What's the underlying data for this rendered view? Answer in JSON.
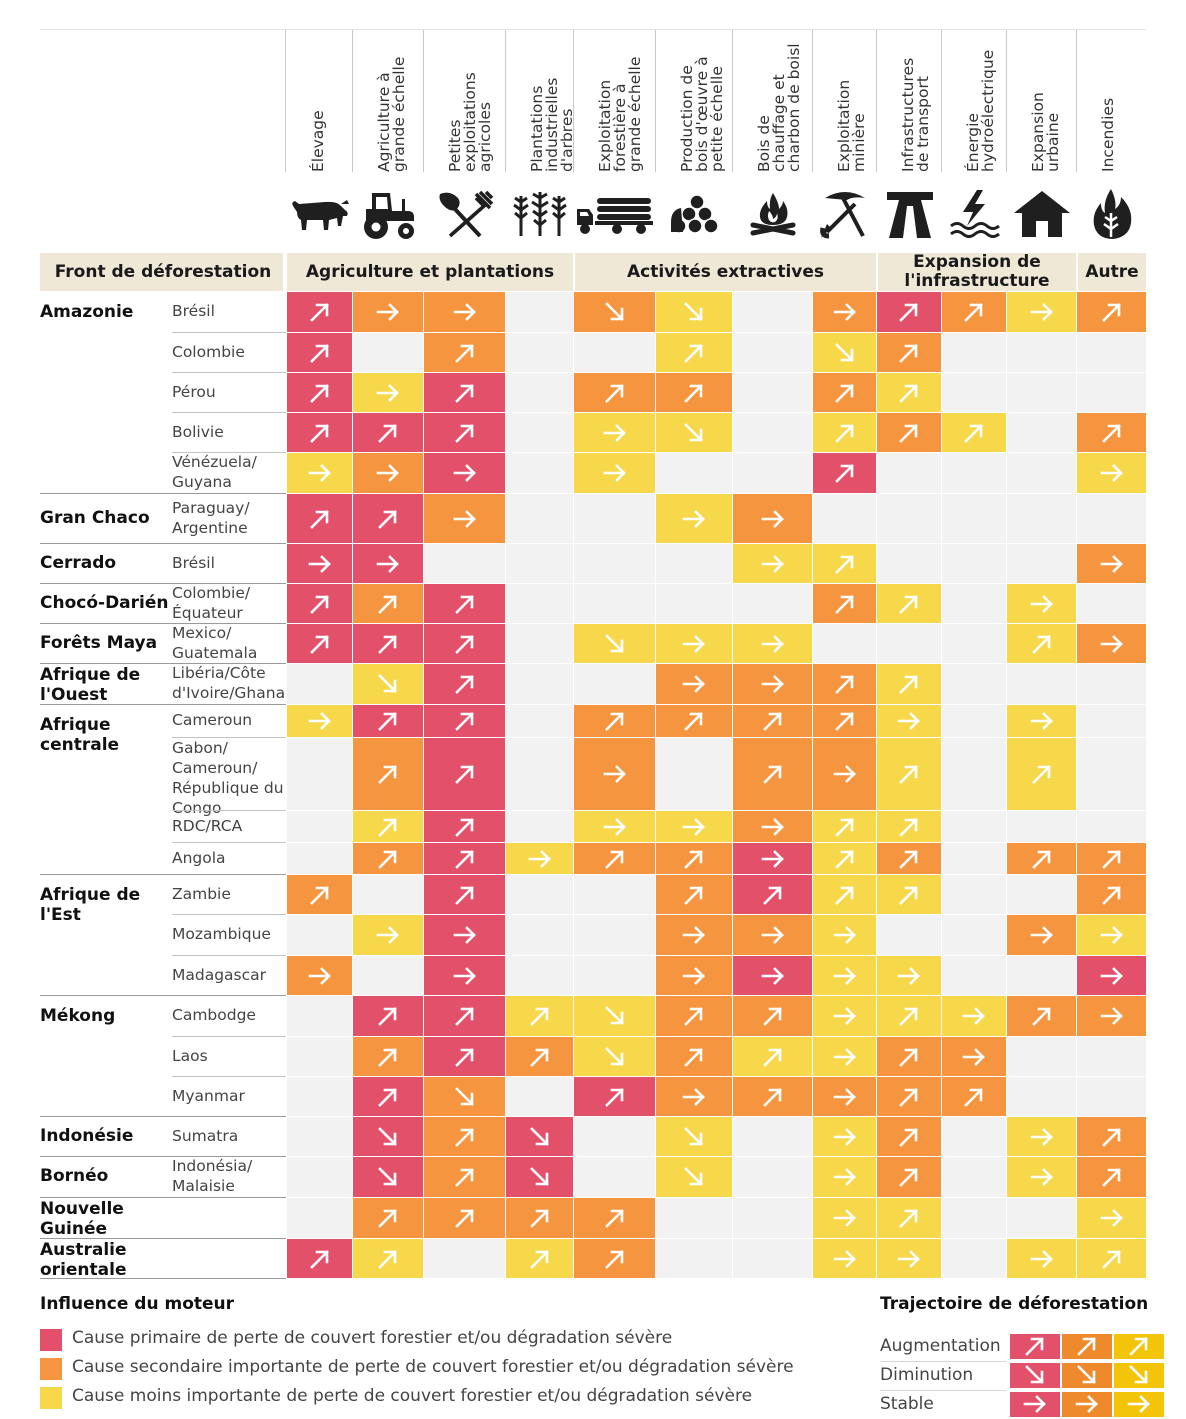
{
  "colors": {
    "primary": "#e2506a",
    "secondary": "#f5953f",
    "minor": "#f6d84a",
    "empty": "#f2f2f2",
    "band": "#efe8d6"
  },
  "columns": [
    {
      "label": "Élevage",
      "icon": "cow-icon"
    },
    {
      "label": "Agriculture à\ngrande échelle",
      "icon": "tractor-icon"
    },
    {
      "label": "Petites\nexploitations\nagricoles",
      "icon": "shovel-fork-icon"
    },
    {
      "label": "Plantations\nindustrielles\nd'arbres",
      "icon": "tree-plantation-icon"
    },
    {
      "label": "Exploitation\nforestière à\ngrande échelle",
      "icon": "logging-truck-icon"
    },
    {
      "label": "Production de\nbois d'œuvre à\npetite échelle",
      "icon": "log-pile-icon"
    },
    {
      "label": "Bois de\nchauffage et\ncharbon de boisl",
      "icon": "campfire-icon"
    },
    {
      "label": "Exploitation\nminière",
      "icon": "pickaxe-icon"
    },
    {
      "label": "Infrastructures\nde transport",
      "icon": "road-icon"
    },
    {
      "label": "Énergie\nhydroélectrique",
      "icon": "hydro-icon"
    },
    {
      "label": "Expansion\nurbaine",
      "icon": "house-icon"
    },
    {
      "label": "Incendies",
      "icon": "fire-icon"
    }
  ],
  "bands": {
    "front_header": "Front de déforestation",
    "groups": [
      {
        "label": "Agriculture et plantations"
      },
      {
        "label": "Activités extractives"
      },
      {
        "label": "Expansion de\nl'infrastructure"
      },
      {
        "label": "Autre"
      }
    ]
  },
  "chart_data": {
    "type": "heatmap",
    "legend_influence": {
      "P": "primary",
      "S": "secondary",
      "M": "minor"
    },
    "legend_trajectory": {
      "u": "Augmentation",
      "d": "Diminution",
      "s": "Stable"
    },
    "fronts": [
      {
        "name": "Amazonie",
        "rows": [
          {
            "sub": "Brésil",
            "cells": [
              "Pu",
              "Ss",
              "Ss",
              "",
              "Sd",
              "Md",
              "",
              "Ss",
              "Pu",
              "Su",
              "Ms",
              "Su"
            ]
          },
          {
            "sub": "Colombie",
            "cells": [
              "Pu",
              "",
              "Su",
              "",
              "",
              "Mu",
              "",
              "Md",
              "Su",
              "",
              "",
              ""
            ]
          },
          {
            "sub": "Pérou",
            "cells": [
              "Pu",
              "Ms",
              "Pu",
              "",
              "Su",
              "Su",
              "",
              "Su",
              "Mu",
              "",
              "",
              ""
            ]
          },
          {
            "sub": "Bolivie",
            "cells": [
              "Pu",
              "Pu",
              "Pu",
              "",
              "Ms",
              "Md",
              "",
              "Mu",
              "Su",
              "Mu",
              "",
              "Su"
            ]
          },
          {
            "sub": "Vénézuela/\nGuyana",
            "cells": [
              "Ms",
              "Ss",
              "Ps",
              "",
              "Ms",
              "",
              "",
              "Pu",
              "",
              "",
              "",
              "Ms"
            ]
          }
        ]
      },
      {
        "name": "Gran Chaco",
        "rows": [
          {
            "sub": "Paraguay/\nArgentine",
            "cells": [
              "Pu",
              "Pu",
              "Ss",
              "",
              "",
              "Ms",
              "Ss",
              "",
              "",
              "",
              "",
              ""
            ]
          }
        ]
      },
      {
        "name": "Cerrado",
        "rows": [
          {
            "sub": "Brésil",
            "cells": [
              "Ps",
              "Ps",
              "",
              "",
              "",
              "",
              "Ms",
              "Mu",
              "",
              "",
              "",
              "Ss"
            ]
          }
        ]
      },
      {
        "name": "Chocó-Darién",
        "rows": [
          {
            "sub": "Colombie/\nÉquateur",
            "cells": [
              "Pu",
              "Su",
              "Pu",
              "",
              "",
              "",
              "",
              "Su",
              "Mu",
              "",
              "Ms",
              ""
            ]
          }
        ]
      },
      {
        "name": "Forêts Maya",
        "rows": [
          {
            "sub": "Mexico/\nGuatemala",
            "cells": [
              "Pu",
              "Pu",
              "Pu",
              "",
              "Md",
              "Ms",
              "Ms",
              "",
              "",
              "",
              "Mu",
              "Ss"
            ]
          }
        ]
      },
      {
        "name": "Afrique de\nl'Ouest",
        "rows": [
          {
            "sub": "Libéria/Côte\nd'Ivoire/Ghana",
            "cells": [
              "",
              "Md",
              "Pu",
              "",
              "",
              "Ss",
              "Ss",
              "Su",
              "Mu",
              "",
              "",
              ""
            ]
          }
        ]
      },
      {
        "name": "Afrique\ncentrale",
        "rows": [
          {
            "sub": "Cameroun",
            "cells": [
              "Ms",
              "Pu",
              "Pu",
              "",
              "Su",
              "Su",
              "Su",
              "Su",
              "Ms",
              "",
              "Ms",
              ""
            ]
          },
          {
            "sub": "Gabon/\nCameroun/\nRépublique du\nCongo",
            "cells": [
              "",
              "Su",
              "Pu",
              "",
              "Ss",
              "",
              "Su",
              "Ss",
              "Mu",
              "",
              "Mu",
              ""
            ]
          },
          {
            "sub": "RDC/RCA",
            "cells": [
              "",
              "Mu",
              "Pu",
              "",
              "Ms",
              "Ms",
              "Ss",
              "Mu",
              "Mu",
              "",
              "",
              ""
            ]
          },
          {
            "sub": "Angola",
            "cells": [
              "",
              "Su",
              "Pu",
              "Ms",
              "Su",
              "Su",
              "Ps",
              "Mu",
              "Su",
              "",
              "Su",
              "Su"
            ]
          }
        ]
      },
      {
        "name": "Afrique de\nl'Est",
        "rows": [
          {
            "sub": "Zambie",
            "cells": [
              "Su",
              "",
              "Pu",
              "",
              "",
              "Su",
              "Pu",
              "Mu",
              "Mu",
              "",
              "",
              "Su"
            ]
          },
          {
            "sub": "Mozambique",
            "cells": [
              "",
              "Ms",
              "Ps",
              "",
              "",
              "Ss",
              "Ss",
              "Ms",
              "",
              "",
              "Ss",
              "Ms"
            ]
          },
          {
            "sub": "Madagascar",
            "cells": [
              "Ss",
              "",
              "Ps",
              "",
              "",
              "Ss",
              "Ps",
              "Ms",
              "Ms",
              "",
              "",
              "Ps"
            ]
          }
        ]
      },
      {
        "name": "Mékong",
        "rows": [
          {
            "sub": "Cambodge",
            "cells": [
              "",
              "Pu",
              "Pu",
              "Mu",
              "Md",
              "Su",
              "Su",
              "Ms",
              "Mu",
              "Ms",
              "Su",
              "Ss"
            ]
          },
          {
            "sub": "Laos",
            "cells": [
              "",
              "Su",
              "Pu",
              "Su",
              "Md",
              "Su",
              "Mu",
              "Ms",
              "Su",
              "Ss",
              "",
              ""
            ]
          },
          {
            "sub": "Myanmar",
            "cells": [
              "",
              "Pu",
              "Sd",
              "",
              "Pu",
              "Ss",
              "Su",
              "Ss",
              "Su",
              "Su",
              "",
              ""
            ]
          }
        ]
      },
      {
        "name": "Indonésie",
        "rows": [
          {
            "sub": "Sumatra",
            "cells": [
              "",
              "Pd",
              "Su",
              "Pd",
              "",
              "Md",
              "",
              "Ms",
              "Su",
              "",
              "Ms",
              "Su"
            ]
          }
        ]
      },
      {
        "name": "Bornéo",
        "rows": [
          {
            "sub": "Indonésia/\nMalaisie",
            "cells": [
              "",
              "Pd",
              "Su",
              "Pd",
              "",
              "Md",
              "",
              "Ms",
              "Su",
              "",
              "Ms",
              "Su"
            ]
          }
        ]
      },
      {
        "name": "Nouvelle\nGuinée",
        "rows": [
          {
            "sub": "",
            "cells": [
              "",
              "Su",
              "Su",
              "Su",
              "Su",
              "",
              "",
              "Ms",
              "Mu",
              "",
              "",
              "Ms"
            ]
          }
        ]
      },
      {
        "name": "Australie\norientale",
        "rows": [
          {
            "sub": "",
            "cells": [
              "Pu",
              "Mu",
              "",
              "Mu",
              "Su",
              "",
              "",
              "Ms",
              "Ms",
              "",
              "Ms",
              "Mu"
            ]
          }
        ]
      }
    ]
  },
  "legend": {
    "influence_title": "Influence du moteur",
    "items": [
      {
        "color": "primary",
        "text": "Cause primaire de perte de couvert forestier et/ou dégradation sévère"
      },
      {
        "color": "secondary",
        "text": "Cause secondaire importante de perte de couvert forestier et/ou dégradation sévère"
      },
      {
        "color": "minor",
        "text": "Cause moins importante de perte de couvert forestier et/ou dégradation sévère"
      }
    ],
    "trajectory_title": "Trajectoire de déforestation",
    "trajectory": [
      {
        "label": "Augmentation",
        "dir": "u"
      },
      {
        "label": "Diminution",
        "dir": "d"
      },
      {
        "label": "Stable",
        "dir": "s"
      }
    ]
  }
}
